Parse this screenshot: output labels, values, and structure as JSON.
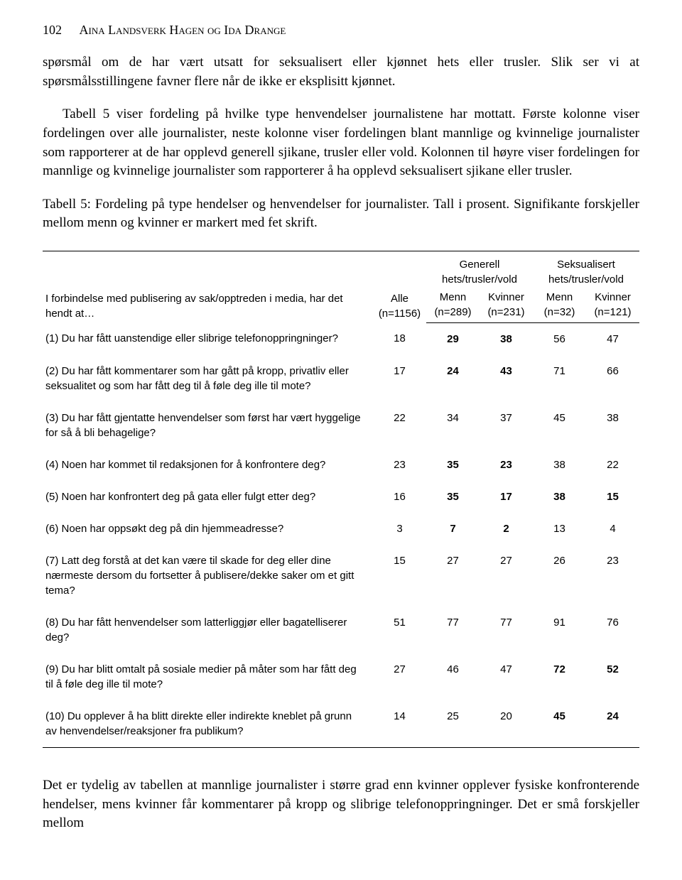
{
  "header": {
    "page_number": "102",
    "authors": "Aina Landsverk Hagen og Ida Drange"
  },
  "paragraphs": {
    "p1": "spørsmål om de har vært utsatt for seksualisert eller kjønnet hets eller trusler. Slik ser vi at spørsmålsstillingene favner flere når de ikke er eksplisitt kjønnet.",
    "p2": "Tabell 5 viser fordeling på hvilke type henvendelser journalistene har mottatt. Første kolonne viser fordelingen over alle journalister, neste kolonne viser fordelingen blant mannlige og kvinnelige journalister som rapporterer at de har opplevd generell sjikane, trusler eller vold. Kolonnen til høyre viser fordelingen for mannlige og kvinnelige journalister som rapporterer å ha opplevd seksualisert sjikane eller trusler.",
    "table_caption": "Tabell 5: Fordeling på type hendelser og henvendelser for journalister. Tall i prosent. Signifikante forskjeller mellom menn og kvinner er markert med fet skrift.",
    "footer": "Det er tydelig av tabellen at mannlige journalister i større grad enn kvinner opplever fysiske konfronterende hendelser, mens kvinner får kommentarer på kropp og slibrige telefonoppringninger. Det er små forskjeller mellom"
  },
  "table": {
    "row_label_header": "I forbindelse med publisering av sak/opptreden i media, har det hendt at…",
    "group1": "Generell hets/trusler/vold",
    "group2": "Seksualisert hets/trusler/vold",
    "col_alle": "Alle",
    "col_alle_n": "(n=1156)",
    "col_menn": "Menn",
    "col_menn_n1": "(n=289)",
    "col_kvinner": "Kvinner",
    "col_kvinner_n1": "(n=231)",
    "col_menn_n2": "(n=32)",
    "col_kvinner_n2": "(n=121)",
    "rows": [
      {
        "label": "(1) Du har fått uanstendige eller slibrige telefonoppringninger?",
        "v": [
          "18",
          "29",
          "38",
          "56",
          "47"
        ],
        "bold": [
          false,
          true,
          true,
          false,
          false
        ]
      },
      {
        "label": "(2) Du har fått kommentarer som har gått på kropp, privatliv eller seksualitet og som har fått deg til å føle deg ille til mote?",
        "v": [
          "17",
          "24",
          "43",
          "71",
          "66"
        ],
        "bold": [
          false,
          true,
          true,
          false,
          false
        ]
      },
      {
        "label": "(3) Du har fått gjentatte henvendelser som først har vært hyggelige for så å bli behagelige?",
        "v": [
          "22",
          "34",
          "37",
          "45",
          "38"
        ],
        "bold": [
          false,
          false,
          false,
          false,
          false
        ]
      },
      {
        "label": "(4) Noen har kommet til redaksjonen for å konfrontere deg?",
        "v": [
          "23",
          "35",
          "23",
          "38",
          "22"
        ],
        "bold": [
          false,
          true,
          true,
          false,
          false
        ]
      },
      {
        "label": "(5) Noen har konfrontert deg på gata eller fulgt etter deg?",
        "v": [
          "16",
          "35",
          "17",
          "38",
          "15"
        ],
        "bold": [
          false,
          true,
          true,
          true,
          true
        ]
      },
      {
        "label": "(6) Noen har oppsøkt deg på din hjemmeadresse?",
        "v": [
          "3",
          "7",
          "2",
          "13",
          "4"
        ],
        "bold": [
          false,
          true,
          true,
          false,
          false
        ]
      },
      {
        "label": "(7) Latt deg forstå at det kan være til skade for deg eller dine nærmeste dersom du fortsetter å publisere/dekke saker om et gitt tema?",
        "v": [
          "15",
          "27",
          "27",
          "26",
          "23"
        ],
        "bold": [
          false,
          false,
          false,
          false,
          false
        ]
      },
      {
        "label": "(8) Du har fått henvendelser som latterliggjør eller bagatelliserer deg?",
        "v": [
          "51",
          "77",
          "77",
          "91",
          "76"
        ],
        "bold": [
          false,
          false,
          false,
          false,
          false
        ]
      },
      {
        "label": "(9) Du har blitt omtalt på sosiale medier på måter som har fått deg til å føle deg ille til mote?",
        "v": [
          "27",
          "46",
          "47",
          "72",
          "52"
        ],
        "bold": [
          false,
          false,
          false,
          true,
          true
        ]
      },
      {
        "label": "(10) Du opplever å ha blitt direkte eller indirekte kneblet på grunn av henvendelser/reaksjoner fra publikum?",
        "v": [
          "14",
          "25",
          "20",
          "45",
          "24"
        ],
        "bold": [
          false,
          false,
          false,
          true,
          true
        ]
      }
    ]
  }
}
